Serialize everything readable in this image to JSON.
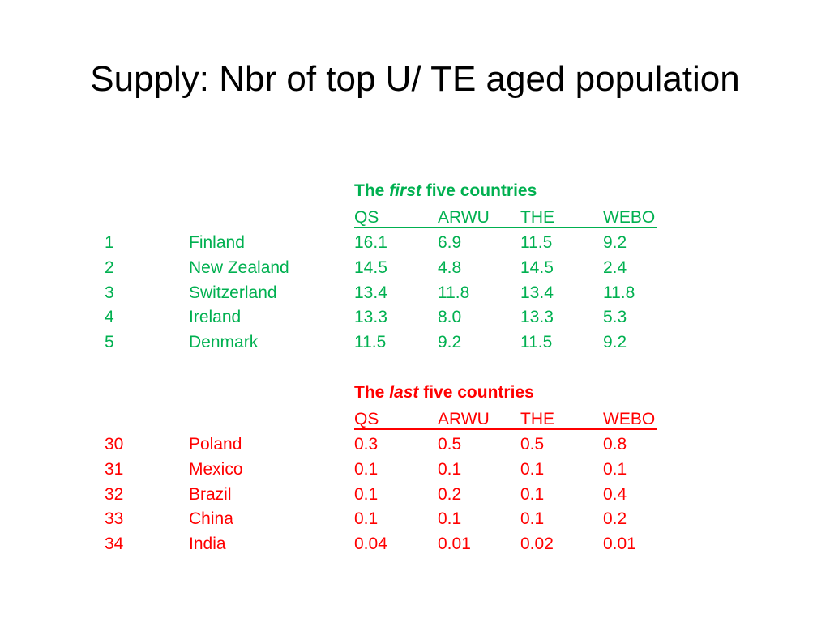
{
  "slide": {
    "title": "Supply: Nbr of top U/ TE aged population"
  },
  "columns": [
    "QS",
    "ARWU",
    "THE",
    "WEBO"
  ],
  "colors": {
    "first_section": "#00b050",
    "last_section": "#ff0000",
    "title": "#000000"
  },
  "sections": [
    {
      "heading_pre": "The",
      "heading_em": "first",
      "heading_post": "five countries",
      "rows": [
        {
          "rank": "1",
          "country": "Finland",
          "qs": "16.1",
          "arwu": "6.9",
          "the": "11.5",
          "webo": "9.2"
        },
        {
          "rank": "2",
          "country": "New Zealand",
          "qs": "14.5",
          "arwu": "4.8",
          "the": "14.5",
          "webo": "2.4"
        },
        {
          "rank": "3",
          "country": "Switzerland",
          "qs": "13.4",
          "arwu": "11.8",
          "the": "13.4",
          "webo": "11.8"
        },
        {
          "rank": "4",
          "country": "Ireland",
          "qs": "13.3",
          "arwu": "8.0",
          "the": "13.3",
          "webo": "5.3"
        },
        {
          "rank": "5",
          "country": "Denmark",
          "qs": "11.5",
          "arwu": "9.2",
          "the": "11.5",
          "webo": "9.2"
        }
      ]
    },
    {
      "heading_pre": "The",
      "heading_em": "last",
      "heading_post": "five countries",
      "rows": [
        {
          "rank": "30",
          "country": "Poland",
          "qs": "0.3",
          "arwu": "0.5",
          "the": "0.5",
          "webo": "0.8"
        },
        {
          "rank": "31",
          "country": "Mexico",
          "qs": "0.1",
          "arwu": "0.1",
          "the": "0.1",
          "webo": "0.1"
        },
        {
          "rank": "32",
          "country": "Brazil",
          "qs": "0.1",
          "arwu": "0.2",
          "the": "0.1",
          "webo": "0.4"
        },
        {
          "rank": "33",
          "country": "China",
          "qs": "0.1",
          "arwu": "0.1",
          "the": "0.1",
          "webo": "0.2"
        },
        {
          "rank": "34",
          "country": "India",
          "qs": "0.04",
          "arwu": "0.01",
          "the": "0.02",
          "webo": "0.01"
        }
      ]
    }
  ]
}
